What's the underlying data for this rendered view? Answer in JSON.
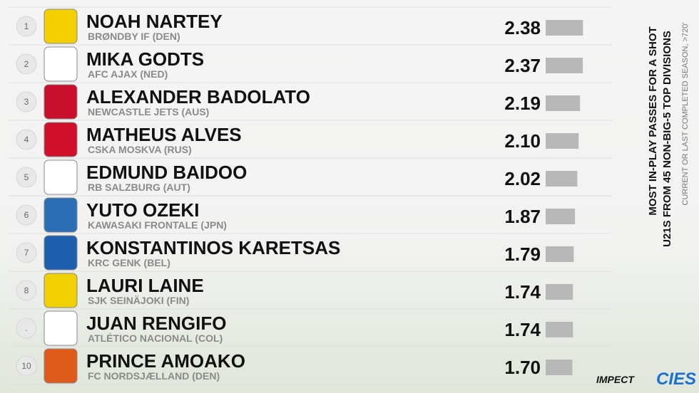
{
  "chart_data": {
    "type": "bar",
    "title": "MOST IN-PLAY PASSES FOR A SHOT",
    "subtitle": "U21S FROM 45 NON-BIG-5 TOP DIVISIONS",
    "note": "CURRENT OR LAST COMPLETED SEASON, >720'",
    "ranks": [
      "1",
      "2",
      "3",
      "4",
      "5",
      "6",
      "7",
      "8",
      ".",
      "10"
    ],
    "categories": [
      "NOAH NARTEY",
      "MIKA GODTS",
      "ALEXANDER BADOLATO",
      "MATHEUS ALVES",
      "EDMUND BAIDOO",
      "YUTO OZEKI",
      "KONSTANTINOS KARETSAS",
      "LAURI LAINE",
      "JUAN RENGIFO",
      "PRINCE AMOAKO"
    ],
    "clubs": [
      "BRØNDBY IF (DEN)",
      "AFC AJAX (NED)",
      "NEWCASTLE JETS (AUS)",
      "CSKA MOSKVA (RUS)",
      "RB SALZBURG (AUT)",
      "KAWASAKI FRONTALE (JPN)",
      "KRC GENK (BEL)",
      "SJK SEINÄJOKI (FIN)",
      "ATLÉTICO NACIONAL (COL)",
      "FC NORDSJÆLLAND (DEN)"
    ],
    "values": [
      2.38,
      2.37,
      2.19,
      2.1,
      2.02,
      1.87,
      1.79,
      1.74,
      1.74,
      1.7
    ],
    "value_labels": [
      "2.38",
      "2.37",
      "2.19",
      "2.10",
      "2.02",
      "1.87",
      "1.79",
      "1.74",
      "1.74",
      "1.70"
    ],
    "color": "#b8b8b8",
    "logos": [
      "IMPECT",
      "CIES"
    ]
  }
}
